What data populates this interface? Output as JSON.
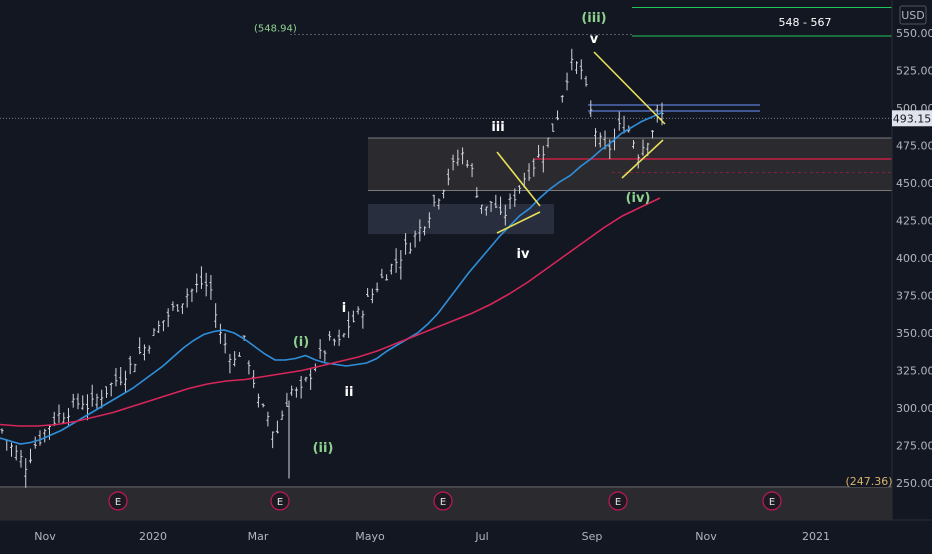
{
  "chart_data": {
    "type": "candlestick",
    "currency": "USD",
    "ylim": [
      238,
      560
    ],
    "yticks": [
      "250.00",
      "275.00",
      "300.00",
      "325.00",
      "350.00",
      "375.00",
      "400.00",
      "425.00",
      "450.00",
      "475.00",
      "500.00",
      "525.00",
      "550.00"
    ],
    "ytick_values": [
      250,
      275,
      300,
      325,
      350,
      375,
      400,
      425,
      450,
      475,
      500,
      525,
      550
    ],
    "xticks": [
      "Nov",
      "2020",
      "Mar",
      "Mayo",
      "Jul",
      "Sep",
      "Nov",
      "2021"
    ],
    "last_price": 493.15,
    "last_price_label": "493.15",
    "target_zone_label": "548 - 567",
    "target_zone": [
      548,
      567
    ],
    "level_top_label": "(548.94)",
    "level_top": 548.94,
    "level_low_label": "(247.36)",
    "level_low": 247.36,
    "wave_labels": [
      {
        "text": "(i)",
        "color": "green"
      },
      {
        "text": "(ii)",
        "color": "green"
      },
      {
        "text": "i",
        "color": "white"
      },
      {
        "text": "ii",
        "color": "white"
      },
      {
        "text": "iii",
        "color": "white"
      },
      {
        "text": "iv",
        "color": "white"
      },
      {
        "text": "v",
        "color": "white"
      },
      {
        "text": "(iii)",
        "color": "green"
      },
      {
        "text": "(iv)",
        "color": "green"
      }
    ],
    "earnings_markers": [
      "E",
      "E",
      "E",
      "E",
      "E"
    ],
    "series": [
      {
        "values": [
          285,
          275,
          268,
          262,
          275,
          282,
          290,
          295,
          298,
          302,
          305,
          300,
          308,
          312,
          318,
          322,
          328,
          336,
          342,
          350,
          358,
          364,
          370,
          376,
          380,
          384,
          378,
          350,
          340,
          330,
          345,
          325,
          300,
          295,
          280,
          300,
          312,
          308,
          320,
          330,
          338,
          345,
          342,
          355,
          360,
          368,
          376,
          385,
          392,
          398,
          405,
          412,
          420,
          430,
          440,
          450,
          460,
          470,
          465,
          445,
          430,
          440,
          425,
          435,
          445,
          455,
          462,
          470,
          480,
          495,
          520,
          530,
          525,
          500,
          480,
          470,
          478,
          490,
          485,
          470,
          478,
          488,
          495
        ]
      },
      {
        "values": [
          280,
          278,
          276,
          277,
          279,
          282,
          285,
          289,
          293,
          297,
          301,
          305,
          309,
          313,
          318,
          323,
          328,
          334,
          340,
          345,
          349,
          351,
          352,
          350,
          346,
          341,
          336,
          332,
          332,
          333,
          335,
          332,
          330,
          329,
          328,
          329,
          330,
          333,
          338,
          342,
          346,
          350,
          356,
          363,
          372,
          381,
          390,
          398,
          406,
          414,
          421,
          428,
          433,
          440,
          446,
          451,
          455,
          461,
          466,
          472,
          477,
          483,
          487,
          491,
          494,
          497
        ]
      },
      {
        "values": [
          289,
          288,
          288,
          289,
          291,
          294,
          297,
          301,
          305,
          309,
          313,
          316,
          318,
          319,
          321,
          323,
          325,
          328,
          331,
          334,
          338,
          343,
          348,
          353,
          358,
          363,
          369,
          376,
          384,
          393,
          402,
          411,
          420,
          428,
          434,
          440
        ]
      }
    ]
  }
}
